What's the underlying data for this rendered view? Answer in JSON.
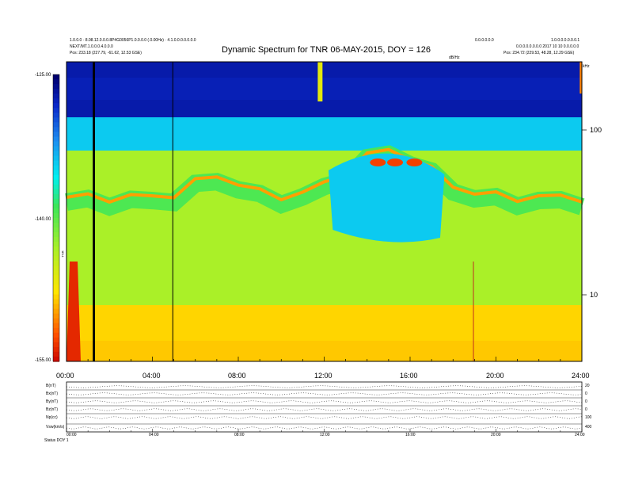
{
  "header": {
    "left_line1": "1.0.0.0 · 8.08.12.0.0.0.8P4G0056P1.0.0.0.0 (.0.00Hz) · 4.1.0.0.0.0.0.0.0",
    "left_line2": "NEXT/MT.1.0.0.0.4.0.0.0",
    "left_line3_label": "Pos:",
    "left_line3_value": "233.18 (227.79, -61.62, 12.53 GSE)",
    "right_line1_a": "0.0.0.0.0.0",
    "right_line1_b": "1.0.0.0.0.0.0.0.1",
    "right_line2": "0.0.0.0.0.0.0.0 2017 10 10 0.0.0.0.0",
    "right_line3_label": "Pos:",
    "right_line3_value": "234.72 (229.53, 48.28, 12.29 GSE)",
    "dbhz": "dB/Hz",
    "khz": "kHz"
  },
  "colors": {
    "background": "#ffffff",
    "axis": "#000000",
    "event_line": "#c03020"
  },
  "chart_data": [
    {
      "type": "heatmap",
      "title": "Dynamic Spectrum for TNR 06-MAY-2015, DOY = 126",
      "colorbar": {
        "label": "TNR",
        "unit": "dB/Hz",
        "ticks": [
          "-125.00",
          "-140.00",
          "-155.00"
        ],
        "range": [
          -155,
          -125
        ]
      },
      "x_ticks": [
        "00:00",
        "04:00",
        "08:00",
        "12:00",
        "16:00",
        "20:00",
        "24:00"
      ],
      "xlim": [
        "00:00",
        "24:00"
      ],
      "y_axis": {
        "scale": "log",
        "unit": "kHz",
        "ticks": [
          "100",
          "10"
        ],
        "side": "right"
      },
      "vertical_lines_hours": [
        1.25,
        1.3,
        4.95,
        18.95
      ],
      "bands": [
        {
          "name": "top_blue",
          "level_dB": -127
        },
        {
          "name": "cyan_plasma_line",
          "level_dB": -134
        },
        {
          "name": "yellow_transition",
          "level_dB": -139
        },
        {
          "name": "green_background",
          "level_dB": -143
        },
        {
          "name": "low_frequency_yellow",
          "level_dB": -148
        }
      ],
      "plasma_line_upper_boundary_hours": [
        0,
        1,
        2,
        3,
        4,
        5,
        6,
        7,
        8,
        9,
        10,
        11,
        12,
        13,
        14,
        15,
        16,
        17,
        18,
        19,
        20,
        21,
        22,
        23,
        24
      ],
      "peak_events_hours": [
        14.5,
        15.3,
        16.2
      ]
    },
    {
      "type": "line",
      "title": "",
      "rows": [
        {
          "label": "B(nT)",
          "right_label": "20"
        },
        {
          "label": "Bx(nT)",
          "right_label": "0"
        },
        {
          "label": "By(nT)",
          "right_label": "0"
        },
        {
          "label": "Bz(nT)",
          "right_label": "0"
        },
        {
          "label": "Np(cc)",
          "right_label": "100"
        },
        {
          "label": "Vsw(km/s)",
          "right_label": "400"
        }
      ],
      "x_ticks": [
        "00:00",
        "04:00",
        "08:00",
        "12:00",
        "16:00",
        "20:00",
        "24:00"
      ],
      "footer_label": "Status",
      "footer_value": "DOY 1"
    }
  ]
}
